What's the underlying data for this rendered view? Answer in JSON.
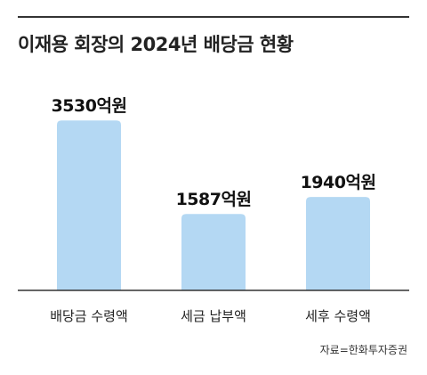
{
  "title": "이재용 회장의 2024년 배당금 현황",
  "source": "자료=한화투자증권",
  "chart_data": {
    "type": "bar",
    "categories": [
      "배당금 수령액",
      "세금 납부액",
      "세후 수령액"
    ],
    "values": [
      3530,
      1587,
      1940
    ],
    "value_labels": [
      "3530억원",
      "1587억원",
      "1940억원"
    ],
    "ylim": [
      0,
      3700
    ],
    "grid": false,
    "bar_color": "#b4d8f3",
    "axis_color": "#333333"
  }
}
